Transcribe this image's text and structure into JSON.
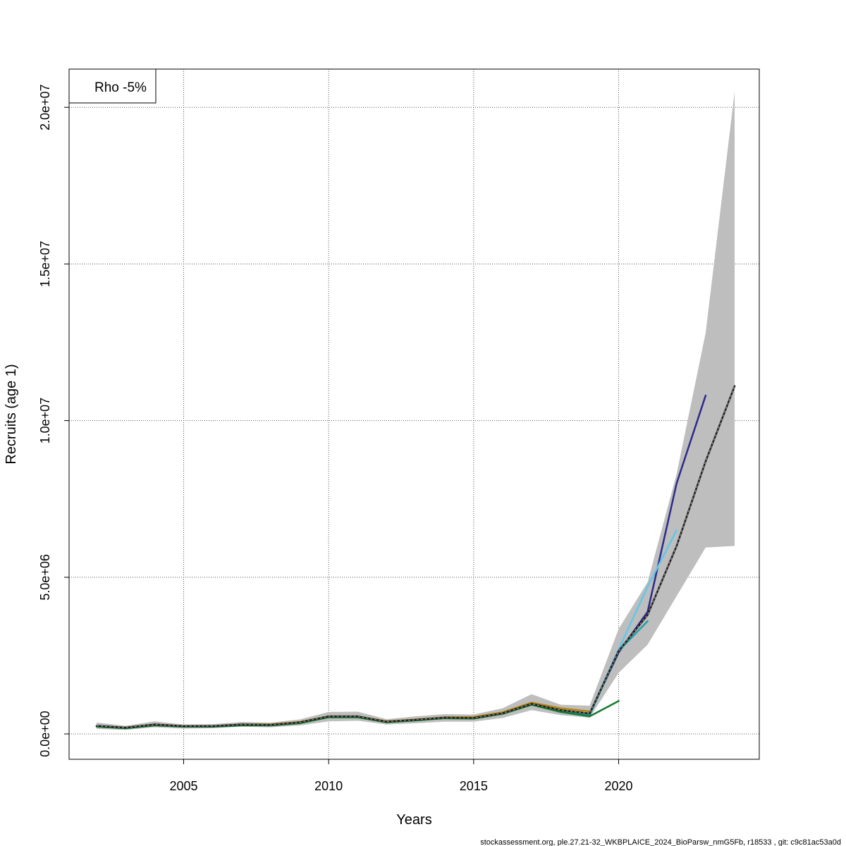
{
  "chart_data": {
    "type": "line",
    "xlabel": "Years",
    "ylabel": "Recruits (age 1)",
    "xlim": [
      2001.05,
      2024.85
    ],
    "ylim": [
      -810000,
      21220000
    ],
    "x_ticks": [
      2005,
      2010,
      2015,
      2020
    ],
    "y_ticks": [
      0,
      5000000,
      10000000,
      15000000,
      20000000
    ],
    "y_tick_labels": [
      "0.0e+00",
      "5.0e+06",
      "1.0e+07",
      "1.5e+07",
      "2.0e+07"
    ],
    "grid": true,
    "legend": {
      "position": "top-left",
      "text": "Rho -5%"
    },
    "confidence_band": {
      "color": "#bebebe",
      "x": [
        2002,
        2003,
        2004,
        2005,
        2006,
        2007,
        2008,
        2009,
        2010,
        2011,
        2012,
        2013,
        2014,
        2015,
        2016,
        2017,
        2018,
        2019,
        2020,
        2021,
        2022,
        2023,
        2024
      ],
      "lower": [
        160000,
        130000,
        210000,
        170000,
        180000,
        230000,
        210000,
        270000,
        400000,
        420000,
        300000,
        340000,
        390000,
        390000,
        510000,
        760000,
        600000,
        520000,
        1950000,
        2850000,
        4400000,
        5950000,
        6000000
      ],
      "upper": [
        360000,
        260000,
        400000,
        300000,
        310000,
        380000,
        360000,
        460000,
        700000,
        710000,
        470000,
        560000,
        630000,
        620000,
        820000,
        1270000,
        930000,
        900000,
        3350000,
        4850000,
        8300000,
        12800000,
        20500000
      ]
    },
    "series": [
      {
        "color": "#1a1a1a",
        "dashed": true,
        "x": [
          2002,
          2003,
          2004,
          2005,
          2006,
          2007,
          2008,
          2009,
          2010,
          2011,
          2012,
          2013,
          2014,
          2015,
          2016,
          2017,
          2018,
          2019,
          2020,
          2021,
          2022,
          2023,
          2024
        ],
        "values": [
          260000,
          200000,
          300000,
          250000,
          250000,
          300000,
          290000,
          370000,
          560000,
          560000,
          390000,
          450000,
          520000,
          510000,
          660000,
          960000,
          760000,
          650000,
          2650000,
          3800000,
          6000000,
          8700000,
          11100000
        ]
      },
      {
        "color": "#2e2a8a",
        "x": [
          2002,
          2003,
          2004,
          2005,
          2006,
          2007,
          2008,
          2009,
          2010,
          2011,
          2012,
          2013,
          2014,
          2015,
          2016,
          2017,
          2018,
          2019,
          2020,
          2021,
          2022,
          2023
        ],
        "values": [
          250000,
          190000,
          290000,
          240000,
          240000,
          290000,
          280000,
          360000,
          550000,
          550000,
          380000,
          440000,
          510000,
          500000,
          650000,
          950000,
          750000,
          640000,
          2600000,
          3900000,
          8000000,
          10800000
        ]
      },
      {
        "color": "#5fc8e8",
        "x": [
          2002,
          2003,
          2004,
          2005,
          2006,
          2007,
          2008,
          2009,
          2010,
          2011,
          2012,
          2013,
          2014,
          2015,
          2016,
          2017,
          2018,
          2019,
          2020,
          2021,
          2022
        ],
        "values": [
          250000,
          190000,
          290000,
          240000,
          240000,
          290000,
          280000,
          360000,
          550000,
          550000,
          380000,
          440000,
          510000,
          500000,
          650000,
          940000,
          740000,
          620000,
          2700000,
          4700000,
          6500000
        ]
      },
      {
        "color": "#20a0a8",
        "x": [
          2002,
          2003,
          2004,
          2005,
          2006,
          2007,
          2008,
          2009,
          2010,
          2011,
          2012,
          2013,
          2014,
          2015,
          2016,
          2017,
          2018,
          2019,
          2020,
          2021
        ],
        "values": [
          250000,
          190000,
          290000,
          240000,
          240000,
          290000,
          280000,
          360000,
          550000,
          550000,
          380000,
          440000,
          510000,
          500000,
          650000,
          940000,
          740000,
          600000,
          2650000,
          3600000
        ]
      },
      {
        "color": "#b8860b",
        "x": [
          2002,
          2003,
          2004,
          2005,
          2006,
          2007,
          2008,
          2009,
          2010,
          2011,
          2012,
          2013,
          2014,
          2015,
          2016,
          2017,
          2018,
          2019
        ],
        "values": [
          240000,
          200000,
          300000,
          250000,
          250000,
          300000,
          300000,
          380000,
          560000,
          560000,
          400000,
          460000,
          530000,
          540000,
          690000,
          1000000,
          820000,
          720000
        ]
      },
      {
        "color": "#147a30",
        "x": [
          2002,
          2003,
          2004,
          2005,
          2006,
          2007,
          2008,
          2009,
          2010,
          2011,
          2012,
          2013,
          2014,
          2015,
          2016,
          2017,
          2018,
          2019,
          2020
        ],
        "values": [
          230000,
          180000,
          270000,
          230000,
          230000,
          270000,
          270000,
          340000,
          530000,
          530000,
          370000,
          430000,
          500000,
          490000,
          640000,
          930000,
          700000,
          560000,
          1050000
        ]
      }
    ]
  },
  "footer": "stockassessment.org, ple.27.21-32_WKBPLAICE_2024_BioParsw_nmG5Fb, r18533 , git: c9c81ac53a0d"
}
